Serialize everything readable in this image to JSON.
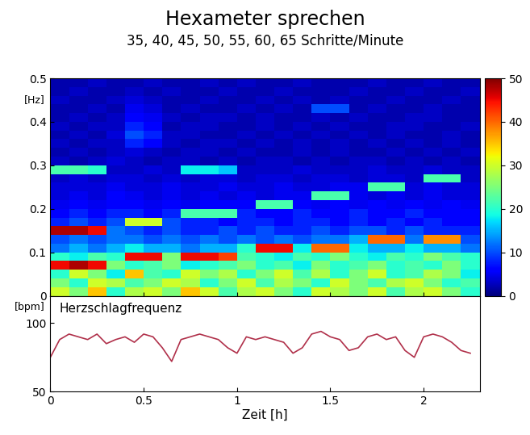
{
  "chart_data": [
    {
      "type": "heatmap",
      "title": "Hexameter sprechen",
      "subtitle": "35, 40, 45, 50, 55, 60, 65 Schritte/Minute",
      "y_label": "[Hz]",
      "xlim": [
        0,
        2.3
      ],
      "xticks": [
        0,
        0.5,
        1,
        1.5,
        2
      ],
      "ylim": [
        0,
        0.5
      ],
      "yticks": [
        0,
        0.1,
        0.2,
        0.3,
        0.4,
        0.5
      ],
      "tick_labels": "y",
      "colorbar": {
        "range": [
          0,
          50
        ],
        "ticks": [
          0,
          10,
          20,
          30,
          40,
          50
        ]
      },
      "cells": [
        [
          30,
          25,
          35,
          20,
          28,
          30,
          25,
          35,
          30,
          22,
          28,
          30,
          25,
          20,
          30,
          28,
          25,
          30,
          22,
          28,
          30,
          25,
          20
        ],
        [
          25,
          20,
          30,
          28,
          22,
          25,
          30,
          28,
          20,
          25,
          30,
          22,
          28,
          25,
          20,
          30,
          25,
          22,
          28,
          30,
          25,
          20,
          22
        ],
        [
          20,
          30,
          25,
          18,
          35,
          22,
          20,
          30,
          25,
          28,
          20,
          25,
          30,
          22,
          28,
          20,
          25,
          30,
          20,
          22,
          28,
          25,
          18
        ],
        [
          45,
          48,
          45,
          25,
          20,
          22,
          25,
          18,
          20,
          22,
          25,
          20,
          22,
          18,
          25,
          20,
          22,
          25,
          20,
          22,
          20,
          25,
          20
        ],
        [
          20,
          18,
          22,
          20,
          45,
          45,
          25,
          45,
          45,
          42,
          22,
          20,
          18,
          22,
          20,
          25,
          20,
          18,
          22,
          20,
          25,
          22,
          20
        ],
        [
          12,
          15,
          12,
          15,
          18,
          15,
          15,
          12,
          15,
          15,
          20,
          45,
          45,
          18,
          40,
          40,
          18,
          15,
          15,
          18,
          15,
          15,
          12
        ],
        [
          10,
          12,
          10,
          12,
          12,
          10,
          12,
          10,
          12,
          10,
          12,
          10,
          12,
          10,
          12,
          12,
          15,
          40,
          40,
          12,
          38,
          38,
          10
        ],
        [
          48,
          48,
          45,
          12,
          10,
          8,
          10,
          8,
          8,
          10,
          8,
          10,
          8,
          8,
          10,
          8,
          10,
          10,
          8,
          10,
          8,
          8,
          8
        ],
        [
          8,
          10,
          8,
          10,
          30,
          30,
          10,
          8,
          8,
          6,
          8,
          8,
          6,
          8,
          8,
          6,
          8,
          6,
          8,
          6,
          8,
          6,
          6
        ],
        [
          6,
          8,
          6,
          8,
          8,
          6,
          8,
          22,
          22,
          22,
          8,
          6,
          6,
          8,
          6,
          6,
          8,
          6,
          6,
          8,
          6,
          6,
          6
        ],
        [
          5,
          6,
          5,
          6,
          6,
          5,
          6,
          5,
          6,
          6,
          6,
          22,
          22,
          6,
          5,
          6,
          5,
          6,
          5,
          6,
          5,
          6,
          5
        ],
        [
          4,
          5,
          4,
          6,
          5,
          4,
          5,
          4,
          5,
          4,
          5,
          4,
          5,
          5,
          22,
          22,
          5,
          4,
          5,
          4,
          5,
          4,
          4
        ],
        [
          4,
          4,
          4,
          5,
          4,
          4,
          5,
          4,
          4,
          5,
          4,
          4,
          5,
          4,
          4,
          5,
          5,
          22,
          22,
          4,
          5,
          4,
          4
        ],
        [
          3,
          4,
          3,
          4,
          4,
          3,
          4,
          3,
          4,
          4,
          3,
          4,
          4,
          3,
          4,
          4,
          3,
          4,
          4,
          3,
          22,
          22,
          3
        ],
        [
          22,
          22,
          20,
          3,
          3,
          4,
          3,
          18,
          18,
          16,
          3,
          3,
          3,
          4,
          3,
          3,
          3,
          4,
          3,
          3,
          4,
          3,
          3
        ],
        [
          3,
          2,
          3,
          4,
          3,
          2,
          3,
          3,
          2,
          3,
          2,
          3,
          3,
          2,
          3,
          2,
          3,
          3,
          2,
          3,
          2,
          3,
          2
        ],
        [
          2,
          3,
          2,
          3,
          4,
          3,
          2,
          3,
          3,
          2,
          3,
          2,
          2,
          3,
          2,
          3,
          2,
          2,
          3,
          2,
          3,
          2,
          3
        ],
        [
          3,
          2,
          3,
          3,
          8,
          6,
          3,
          2,
          3,
          3,
          2,
          3,
          2,
          3,
          2,
          3,
          2,
          3,
          2,
          3,
          2,
          3,
          2
        ],
        [
          2,
          3,
          2,
          4,
          10,
          8,
          3,
          3,
          2,
          2,
          3,
          2,
          3,
          2,
          3,
          2,
          3,
          2,
          3,
          2,
          2,
          3,
          2
        ],
        [
          3,
          2,
          3,
          3,
          8,
          6,
          2,
          3,
          3,
          2,
          2,
          3,
          2,
          3,
          2,
          3,
          2,
          2,
          3,
          3,
          2,
          2,
          3
        ],
        [
          2,
          3,
          2,
          3,
          6,
          5,
          3,
          2,
          3,
          3,
          2,
          3,
          2,
          2,
          3,
          2,
          3,
          2,
          2,
          3,
          3,
          2,
          2
        ],
        [
          2,
          2,
          3,
          2,
          5,
          4,
          2,
          3,
          2,
          2,
          3,
          2,
          3,
          2,
          10,
          10,
          2,
          3,
          2,
          2,
          3,
          2,
          2
        ],
        [
          3,
          2,
          2,
          3,
          4,
          3,
          2,
          2,
          3,
          2,
          2,
          3,
          2,
          3,
          2,
          3,
          2,
          2,
          3,
          2,
          2,
          3,
          2
        ],
        [
          2,
          3,
          2,
          2,
          3,
          2,
          3,
          2,
          2,
          3,
          2,
          2,
          3,
          2,
          2,
          2,
          3,
          2,
          2,
          3,
          2,
          2,
          3
        ],
        [
          2,
          2,
          3,
          2,
          2,
          3,
          2,
          2,
          3,
          2,
          3,
          2,
          2,
          3,
          2,
          2,
          2,
          3,
          2,
          2,
          3,
          2,
          2
        ]
      ]
    },
    {
      "type": "line",
      "title": "Herzschlagfrequenz",
      "y_label": "[bpm]",
      "x_label": "Zeit [h]",
      "xlim": [
        0,
        2.3
      ],
      "xticks": [
        0,
        0.5,
        1,
        1.5,
        2
      ],
      "ylim": [
        50,
        120
      ],
      "yticks": [
        50,
        100
      ],
      "color": "#b0304a",
      "x": [
        0,
        0.05,
        0.1,
        0.15,
        0.2,
        0.25,
        0.3,
        0.35,
        0.4,
        0.45,
        0.5,
        0.55,
        0.6,
        0.65,
        0.7,
        0.75,
        0.8,
        0.85,
        0.9,
        0.95,
        1.0,
        1.05,
        1.1,
        1.15,
        1.2,
        1.25,
        1.3,
        1.35,
        1.4,
        1.45,
        1.5,
        1.55,
        1.6,
        1.65,
        1.7,
        1.75,
        1.8,
        1.85,
        1.9,
        1.95,
        2.0,
        2.05,
        2.1,
        2.15,
        2.2,
        2.25
      ],
      "values": [
        75,
        88,
        92,
        90,
        88,
        92,
        85,
        88,
        90,
        86,
        92,
        90,
        82,
        72,
        88,
        90,
        92,
        90,
        88,
        82,
        78,
        90,
        88,
        90,
        88,
        86,
        78,
        82,
        92,
        94,
        90,
        88,
        80,
        82,
        90,
        92,
        88,
        90,
        80,
        75,
        90,
        92,
        90,
        86,
        80,
        78
      ]
    }
  ]
}
